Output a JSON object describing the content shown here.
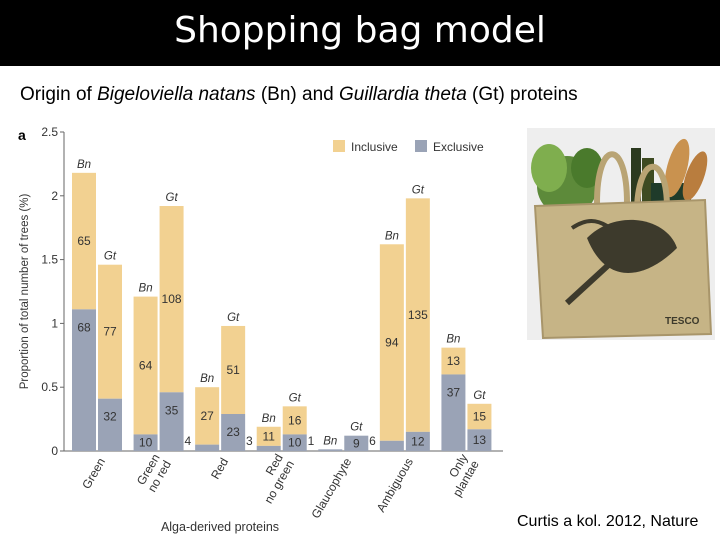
{
  "slide": {
    "title": "Shopping bag model",
    "subtitle_parts": [
      "Origin of ",
      "Bigeloviella natans",
      " (Bn) and ",
      "Guillardia theta",
      " (Gt) proteins"
    ],
    "citation": "Curtis a kol. 2012, Nature"
  },
  "colors": {
    "inclusive": "#f2d191",
    "exclusive": "#9aa3b6",
    "title_bg": "#000000"
  },
  "chart_data": {
    "type": "bar",
    "panel_label": "a",
    "ylabel": "Proportion of total number of trees (%)",
    "xlabel": "Alga-derived proteins",
    "ylim": [
      0,
      2.5
    ],
    "yticks": [
      "0",
      "0.5",
      "1",
      "1.5",
      "2",
      "2.5"
    ],
    "legend": [
      "Inclusive",
      "Exclusive"
    ],
    "legend_position": "top-right",
    "categories": [
      "Green",
      "Green no red",
      "Red",
      "Red no green",
      "Glaucophyte",
      "Ambiguous",
      "Only plantae"
    ],
    "bars": [
      {
        "category": "Green",
        "species": "Bn",
        "exclusive": 1.11,
        "total": 2.18,
        "exclusive_count": "68",
        "inclusive_count": "65"
      },
      {
        "category": "Green",
        "species": "Gt",
        "exclusive": 0.41,
        "total": 1.46,
        "exclusive_count": "32",
        "inclusive_count": "77"
      },
      {
        "category": "Green no red",
        "species": "Bn",
        "exclusive": 0.13,
        "total": 1.21,
        "exclusive_count": "10",
        "inclusive_count": "64"
      },
      {
        "category": "Green no red",
        "species": "Gt",
        "exclusive": 0.46,
        "total": 1.92,
        "exclusive_count": "35",
        "inclusive_count": "108"
      },
      {
        "category": "Red",
        "species": "Bn",
        "exclusive": 0.05,
        "total": 0.5,
        "exclusive_count": "4",
        "inclusive_count": "27"
      },
      {
        "category": "Red",
        "species": "Gt",
        "exclusive": 0.29,
        "total": 0.98,
        "exclusive_count": "23",
        "inclusive_count": "51"
      },
      {
        "category": "Red no green",
        "species": "Bn",
        "exclusive": 0.04,
        "total": 0.19,
        "exclusive_count": "3",
        "inclusive_count": "11"
      },
      {
        "category": "Red no green",
        "species": "Gt",
        "exclusive": 0.13,
        "total": 0.35,
        "exclusive_count": "10",
        "inclusive_count": "16"
      },
      {
        "category": "Glaucophyte",
        "species": "Bn",
        "exclusive": 0.013,
        "total": 0.013,
        "exclusive_count": "1",
        "inclusive_count": ""
      },
      {
        "category": "Glaucophyte",
        "species": "Gt",
        "exclusive": 0.12,
        "total": 0.12,
        "exclusive_count": "9",
        "inclusive_count": ""
      },
      {
        "category": "Ambiguous",
        "species": "Bn",
        "exclusive": 0.08,
        "total": 1.62,
        "exclusive_count": "6",
        "inclusive_count": "94"
      },
      {
        "category": "Ambiguous",
        "species": "Gt",
        "exclusive": 0.15,
        "total": 1.98,
        "exclusive_count": "12",
        "inclusive_count": "135"
      },
      {
        "category": "Only plantae",
        "species": "Bn",
        "exclusive": 0.6,
        "total": 0.81,
        "exclusive_count": "37",
        "inclusive_count": "13"
      },
      {
        "category": "Only plantae",
        "species": "Gt",
        "exclusive": 0.17,
        "total": 0.37,
        "exclusive_count": "13",
        "inclusive_count": "15"
      }
    ]
  },
  "image": {
    "name": "jute shopping bag with groceries",
    "brand_text": "TESCO"
  }
}
